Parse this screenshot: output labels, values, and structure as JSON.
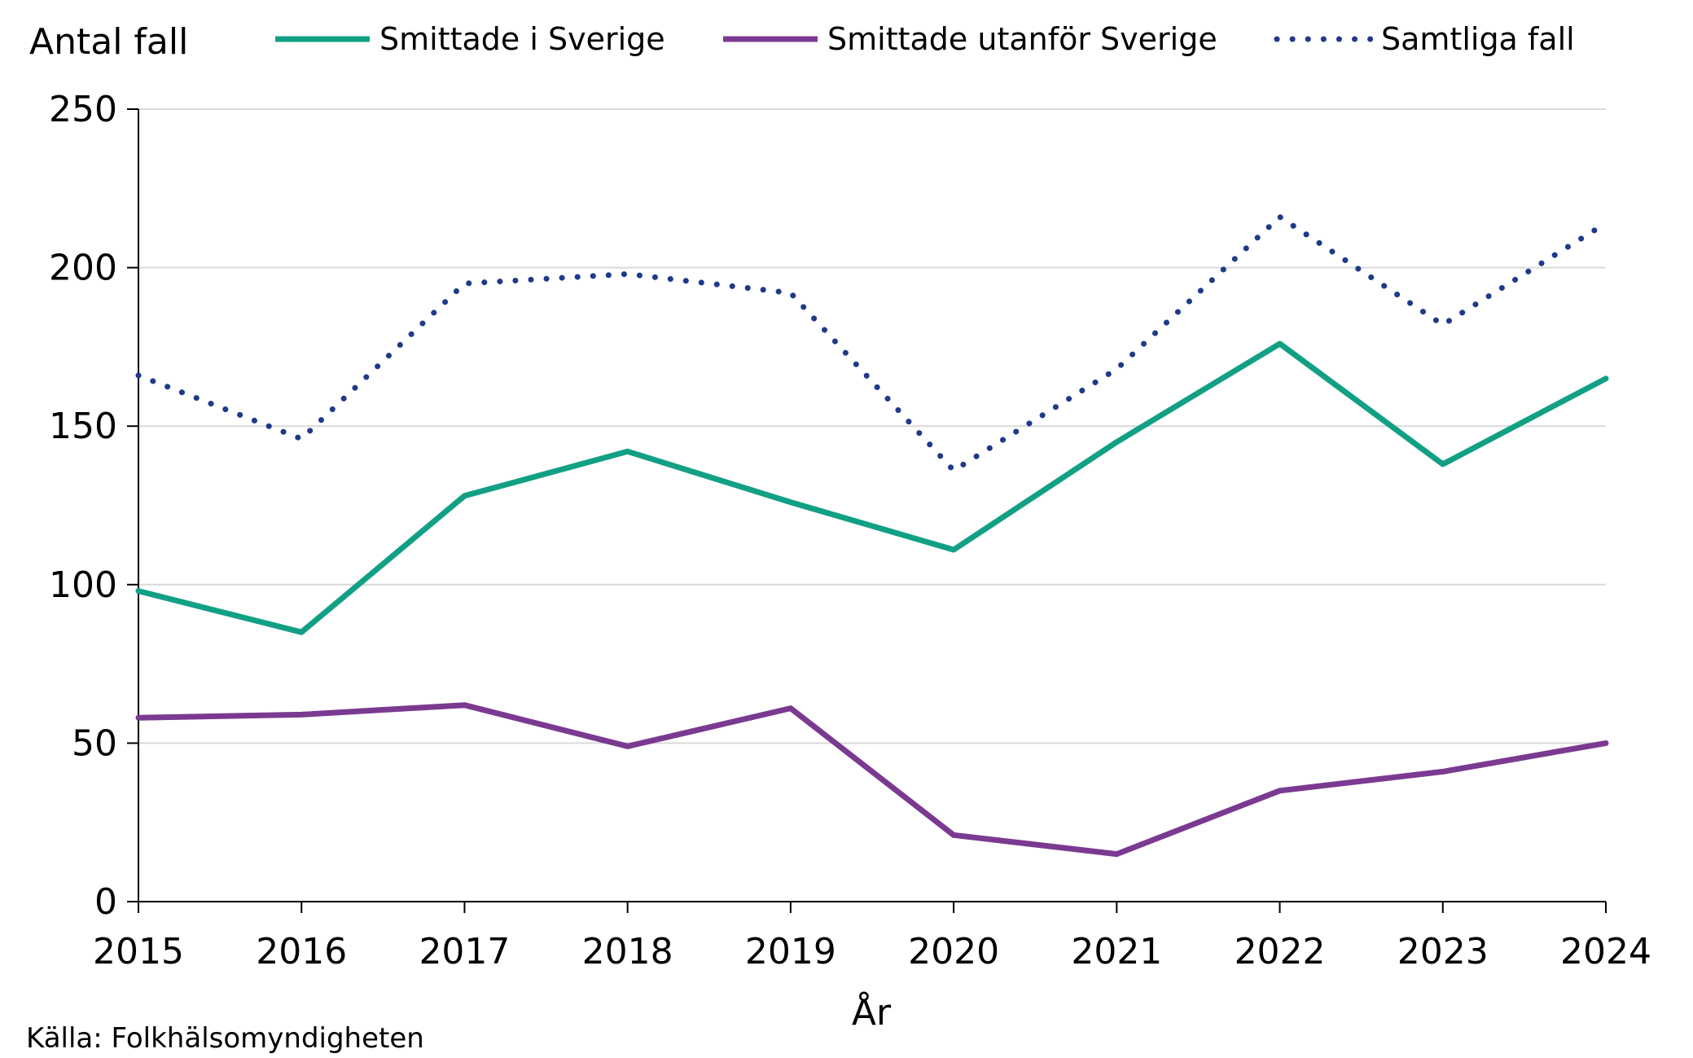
{
  "chart_data": {
    "type": "line",
    "ylabel": "Antal fall",
    "xlabel": "År",
    "source": "Källa: Folkhälsomyndigheten",
    "ylim": [
      0,
      250
    ],
    "yticks": [
      0,
      50,
      100,
      150,
      200,
      250
    ],
    "grid": true,
    "legend_position": "top",
    "x": [
      "2015",
      "2016",
      "2017",
      "2018",
      "2019",
      "2020",
      "2021",
      "2022",
      "2023",
      "2024"
    ],
    "series": [
      {
        "name": "Smittade i Sverige",
        "color": "#12a085",
        "style": "solid",
        "values": [
          98,
          85,
          128,
          142,
          126,
          111,
          145,
          176,
          138,
          165
        ]
      },
      {
        "name": "Smittade utanför Sverige",
        "color": "#7b3a91",
        "style": "solid",
        "values": [
          58,
          59,
          62,
          49,
          61,
          21,
          15,
          35,
          41,
          50
        ]
      },
      {
        "name": "Samtliga fall",
        "color": "#1f3a8a",
        "style": "dotted",
        "values": [
          166,
          146,
          195,
          198,
          192,
          136,
          168,
          216,
          182,
          214
        ]
      }
    ]
  }
}
